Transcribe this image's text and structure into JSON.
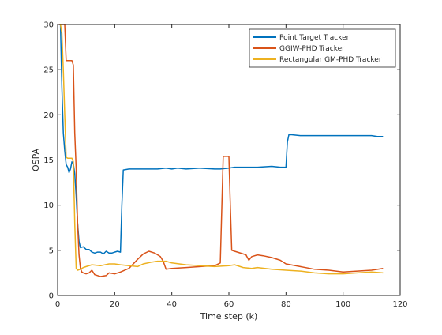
{
  "chart_data": {
    "type": "line",
    "title": "",
    "xlabel": "Time step (k)",
    "ylabel": "OSPA",
    "xlim": [
      0,
      120
    ],
    "ylim": [
      0,
      30
    ],
    "xticks": [
      0,
      20,
      40,
      60,
      80,
      100,
      120
    ],
    "yticks": [
      0,
      5,
      10,
      15,
      20,
      25,
      30
    ],
    "xtick_labels": [
      "0",
      "20",
      "40",
      "60",
      "80",
      "100",
      "120"
    ],
    "ytick_labels": [
      "0",
      "5",
      "10",
      "15",
      "20",
      "25",
      "30"
    ],
    "grid": false,
    "legend_position": "top-right",
    "series": [
      {
        "name": "Point Target Tracker",
        "color": "#0072BD",
        "x": [
          1,
          1.5,
          2,
          2.5,
          3,
          3.5,
          4,
          4.5,
          5,
          5.5,
          6,
          6.5,
          7,
          7.5,
          8,
          9,
          10,
          11,
          12,
          13,
          14,
          15,
          16,
          17,
          18,
          19,
          20,
          21,
          22,
          22.5,
          23,
          25,
          30,
          35,
          38,
          40,
          42,
          45,
          50,
          55,
          57,
          60,
          62,
          65,
          70,
          75,
          78,
          80,
          80.5,
          81,
          82,
          85,
          90,
          95,
          100,
          105,
          110,
          112,
          114
        ],
        "y": [
          30,
          23,
          18,
          16,
          14.5,
          14.2,
          13.6,
          14,
          14.8,
          14.6,
          13.5,
          11,
          8,
          6,
          5.3,
          5.4,
          5.1,
          5.1,
          4.8,
          4.7,
          4.8,
          4.8,
          4.6,
          4.9,
          4.7,
          4.7,
          4.8,
          4.9,
          4.8,
          10,
          13.9,
          14,
          14,
          14,
          14.1,
          14,
          14.1,
          14,
          14.1,
          14,
          14,
          14.1,
          14.2,
          14.2,
          14.2,
          14.3,
          14.2,
          14.2,
          17,
          17.8,
          17.8,
          17.7,
          17.7,
          17.7,
          17.7,
          17.7,
          17.7,
          17.6,
          17.6
        ]
      },
      {
        "name": "GGIW-PHD Tracker",
        "color": "#D95319",
        "x": [
          0.5,
          1,
          1.5,
          2,
          2.5,
          3,
          5,
          5.5,
          6,
          6.5,
          7,
          7.5,
          8,
          8.5,
          9,
          10,
          11,
          12,
          13,
          14,
          15,
          17,
          18,
          20,
          22,
          25,
          28,
          30,
          32,
          34,
          36,
          37,
          38,
          40,
          45,
          50,
          55,
          57,
          58,
          58.5,
          59,
          60,
          60.5,
          61,
          62,
          63,
          65,
          66,
          67,
          68,
          70,
          72,
          75,
          78,
          80,
          85,
          90,
          95,
          100,
          105,
          110,
          114
        ],
        "y": [
          30,
          30,
          30,
          30,
          30,
          26,
          26,
          25.5,
          18,
          14,
          8,
          4.5,
          3,
          2.6,
          2.5,
          2.4,
          2.5,
          2.8,
          2.3,
          2.2,
          2.1,
          2.2,
          2.5,
          2.4,
          2.6,
          3,
          4,
          4.6,
          4.9,
          4.7,
          4.3,
          3.8,
          2.9,
          3,
          3.1,
          3.2,
          3.3,
          3.6,
          15.4,
          15.4,
          15.4,
          15.4,
          10,
          5,
          4.9,
          4.8,
          4.6,
          4.5,
          3.9,
          4.3,
          4.5,
          4.4,
          4.2,
          3.9,
          3.5,
          3.2,
          2.9,
          2.8,
          2.6,
          2.7,
          2.8,
          3
        ]
      },
      {
        "name": "Rectangular GM-PHD Tracker",
        "color": "#EDB120",
        "x": [
          1,
          1.5,
          2,
          2.5,
          3,
          3.5,
          4,
          5,
          5.5,
          6,
          6.5,
          7,
          8,
          9,
          10,
          12,
          15,
          18,
          20,
          22,
          25,
          28,
          30,
          33,
          35,
          38,
          40,
          45,
          50,
          55,
          60,
          62,
          65,
          68,
          70,
          75,
          80,
          85,
          90,
          95,
          100,
          105,
          110,
          114
        ],
        "y": [
          30,
          29,
          25,
          20,
          15.3,
          15.2,
          15.2,
          15.2,
          14.8,
          8,
          3,
          2.8,
          2.9,
          3.1,
          3.2,
          3.4,
          3.3,
          3.5,
          3.5,
          3.4,
          3.3,
          3.2,
          3.5,
          3.7,
          3.8,
          3.8,
          3.6,
          3.4,
          3.3,
          3.2,
          3.3,
          3.4,
          3.1,
          3,
          3.1,
          2.9,
          2.8,
          2.7,
          2.5,
          2.4,
          2.4,
          2.5,
          2.6,
          2.5
        ]
      }
    ]
  }
}
